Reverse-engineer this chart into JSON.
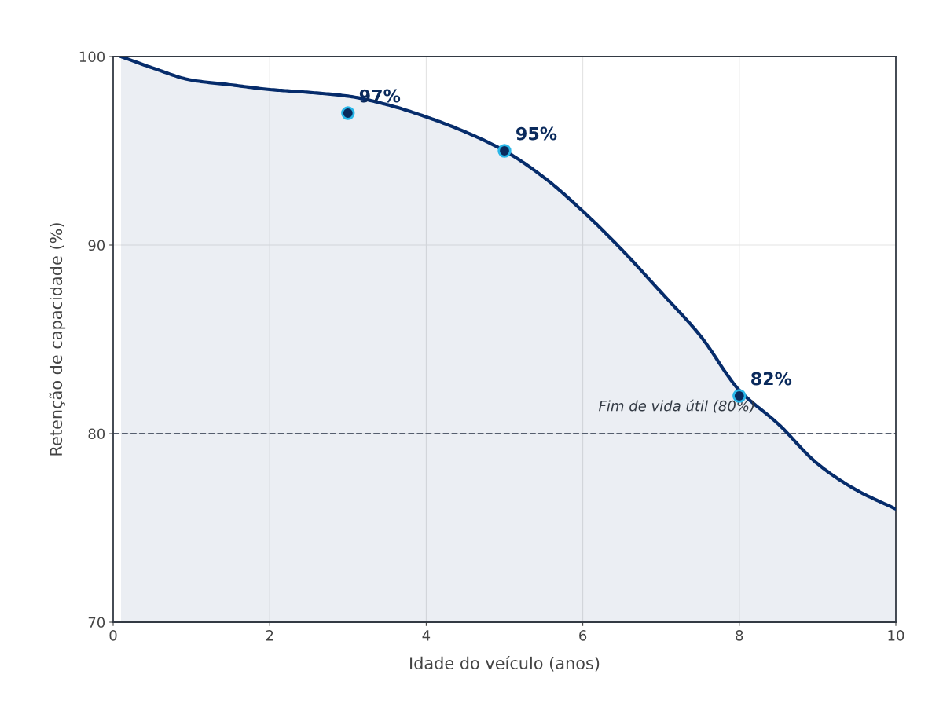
{
  "chart_data": {
    "type": "area",
    "xlabel": "Idade do veículo (anos)",
    "ylabel": "Retenção de capacidade (%)",
    "xlim": [
      0,
      10
    ],
    "xticks": [
      0,
      2,
      4,
      6,
      8,
      10
    ],
    "ylim": [
      70,
      100
    ],
    "yticks": [
      70,
      80,
      90,
      100
    ],
    "grid": true,
    "series": [
      {
        "color": "#062c6b",
        "x": [
          0.1,
          0.5,
          1,
          1.5,
          2,
          2.5,
          3,
          3.5,
          4,
          4.5,
          5,
          5.5,
          6,
          6.5,
          7,
          7.5,
          8,
          8.5,
          9,
          9.5,
          10
        ],
        "values": [
          100,
          99.4,
          98.75,
          98.5,
          98.25,
          98.1,
          97.9,
          97.45,
          96.8,
          96.0,
          95.0,
          93.6,
          91.8,
          89.75,
          87.5,
          85.2,
          82.3,
          80.5,
          78.4,
          77.0,
          76.0
        ]
      },
      {
        "type": "scatter",
        "color": "#0a2a5c",
        "x": [
          3,
          5,
          8
        ],
        "values": [
          97,
          95,
          82
        ],
        "value_labels": [
          "97%",
          "95%",
          "82%"
        ],
        "marker": "circle"
      }
    ],
    "ref_lines": [
      {
        "axis": "y",
        "value": 80,
        "label": "Fim de vida útil (80%)",
        "color": "#555e6e",
        "line_style": "dashed"
      }
    ]
  }
}
